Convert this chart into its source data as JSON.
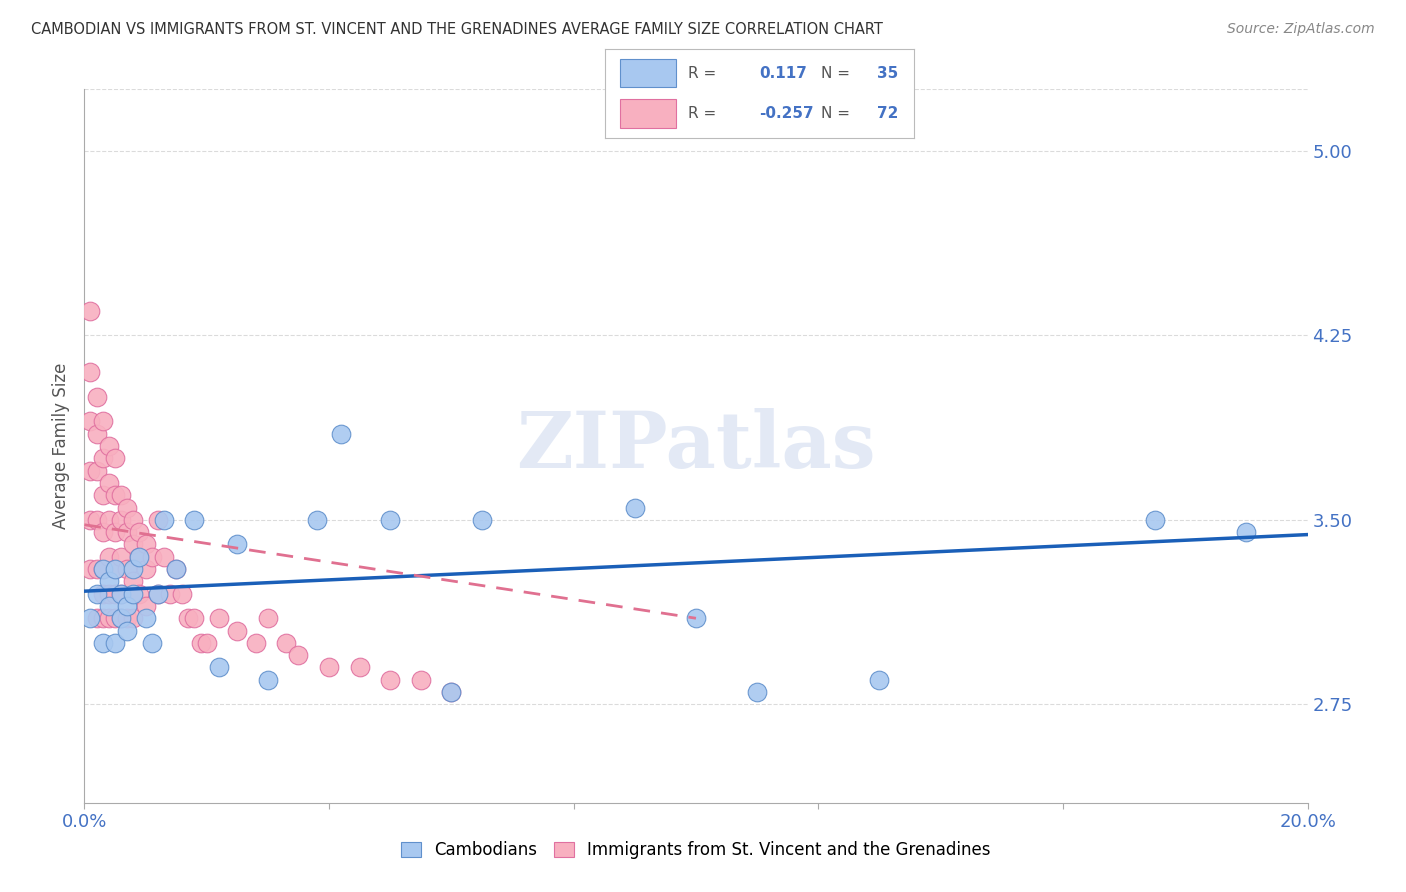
{
  "title": "CAMBODIAN VS IMMIGRANTS FROM ST. VINCENT AND THE GRENADINES AVERAGE FAMILY SIZE CORRELATION CHART",
  "source": "Source: ZipAtlas.com",
  "ylabel": "Average Family Size",
  "yticks": [
    2.75,
    3.5,
    4.25,
    5.0
  ],
  "xlim": [
    0.0,
    0.2
  ],
  "ylim": [
    2.35,
    5.25
  ],
  "blue_R": 0.117,
  "blue_N": 35,
  "pink_R": -0.257,
  "pink_N": 72,
  "blue_line_color": "#1a5fb8",
  "pink_line_color": "#e07090",
  "dot_blue_color": "#a8c8f0",
  "dot_pink_color": "#f8b0c0",
  "dot_edge_blue": "#6090cc",
  "dot_edge_pink": "#e070a0",
  "grid_color": "#cccccc",
  "title_color": "#333333",
  "axis_color": "#4472c4",
  "bg_color": "#ffffff",
  "blue_dots_x": [
    0.001,
    0.002,
    0.003,
    0.003,
    0.004,
    0.004,
    0.005,
    0.005,
    0.006,
    0.006,
    0.007,
    0.007,
    0.008,
    0.008,
    0.009,
    0.01,
    0.011,
    0.012,
    0.013,
    0.015,
    0.018,
    0.022,
    0.025,
    0.03,
    0.038,
    0.042,
    0.05,
    0.06,
    0.065,
    0.09,
    0.1,
    0.11,
    0.13,
    0.175,
    0.19
  ],
  "blue_dots_y": [
    3.1,
    3.2,
    3.0,
    3.3,
    3.15,
    3.25,
    3.0,
    3.3,
    3.1,
    3.2,
    3.05,
    3.15,
    3.2,
    3.3,
    3.35,
    3.1,
    3.0,
    3.2,
    3.5,
    3.3,
    3.5,
    2.9,
    3.4,
    2.85,
    3.5,
    3.85,
    3.5,
    2.8,
    3.5,
    3.55,
    3.1,
    2.8,
    2.85,
    3.5,
    3.45
  ],
  "pink_dots_x": [
    0.001,
    0.001,
    0.001,
    0.001,
    0.001,
    0.001,
    0.002,
    0.002,
    0.002,
    0.002,
    0.002,
    0.002,
    0.003,
    0.003,
    0.003,
    0.003,
    0.003,
    0.003,
    0.003,
    0.004,
    0.004,
    0.004,
    0.004,
    0.004,
    0.004,
    0.005,
    0.005,
    0.005,
    0.005,
    0.005,
    0.005,
    0.006,
    0.006,
    0.006,
    0.006,
    0.006,
    0.007,
    0.007,
    0.007,
    0.007,
    0.008,
    0.008,
    0.008,
    0.008,
    0.009,
    0.009,
    0.009,
    0.01,
    0.01,
    0.01,
    0.011,
    0.012,
    0.012,
    0.013,
    0.014,
    0.015,
    0.016,
    0.017,
    0.018,
    0.019,
    0.02,
    0.022,
    0.025,
    0.028,
    0.03,
    0.033,
    0.035,
    0.04,
    0.045,
    0.05,
    0.055,
    0.06
  ],
  "pink_dots_y": [
    4.35,
    4.1,
    3.9,
    3.7,
    3.5,
    3.3,
    4.0,
    3.85,
    3.7,
    3.5,
    3.3,
    3.1,
    3.9,
    3.75,
    3.6,
    3.45,
    3.3,
    3.2,
    3.1,
    3.8,
    3.65,
    3.5,
    3.35,
    3.2,
    3.1,
    3.75,
    3.6,
    3.45,
    3.3,
    3.2,
    3.1,
    3.6,
    3.5,
    3.35,
    3.2,
    3.1,
    3.55,
    3.45,
    3.3,
    3.1,
    3.5,
    3.4,
    3.25,
    3.1,
    3.45,
    3.35,
    3.2,
    3.4,
    3.3,
    3.15,
    3.35,
    3.5,
    3.2,
    3.35,
    3.2,
    3.3,
    3.2,
    3.1,
    3.1,
    3.0,
    3.0,
    3.1,
    3.05,
    3.0,
    3.1,
    3.0,
    2.95,
    2.9,
    2.9,
    2.85,
    2.85,
    2.8
  ],
  "blue_line_x": [
    0.0,
    0.2
  ],
  "blue_line_y": [
    3.21,
    3.44
  ],
  "pink_line_x": [
    0.0,
    0.1
  ],
  "pink_line_y": [
    3.48,
    3.1
  ]
}
